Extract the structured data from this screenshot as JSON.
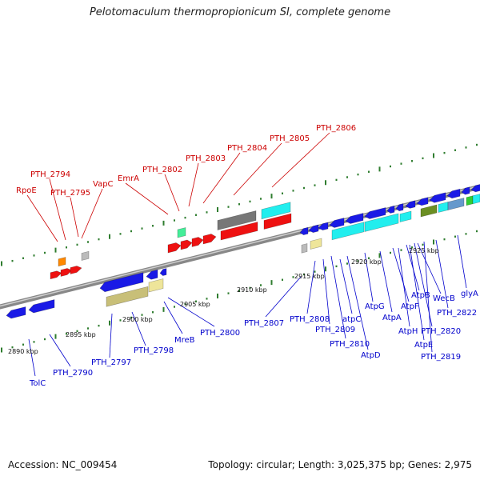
{
  "title": "Pelotomaculum thermopropionicum SI, complete genome",
  "footer": {
    "accession": "Accession: NC_009454",
    "summary": "Topology: circular; Length: 3,025,375 bp; Genes: 2,975"
  },
  "colors": {
    "background": "#ffffff",
    "axis": "#8a8a8a",
    "tick": "#2f7d2f",
    "upper_label": "#cc0000",
    "lower_label": "#0000cc",
    "red": "#ee1111",
    "blue": "#1a1ae6",
    "cyan": "#22eeee",
    "orange": "#ff8800",
    "gray": "#777777",
    "lightgray": "#bbbbbb",
    "khaki": "#c8bf78",
    "paleyellow": "#eee59a",
    "mint": "#44ee99",
    "olive": "#6b8e23",
    "steelblue": "#6699cc",
    "green": "#33cc33"
  },
  "scale_labels": [
    "2890 kbp",
    "2895 kbp",
    "2900 kbp",
    "2905 kbp",
    "2910 kbp",
    "2915 kbp",
    "2920 kbp",
    "2925 kbp"
  ],
  "upper_labels": [
    "RpoE",
    "PTH_2794",
    "PTH_2795",
    "VapC",
    "EmrA",
    "PTH_2802",
    "PTH_2803",
    "PTH_2804",
    "PTH_2805",
    "PTH_2806"
  ],
  "lower_labels": [
    "TolC",
    "PTH_2790",
    "PTH_2797",
    "PTH_2798",
    "MreB",
    "PTH_2800",
    "PTH_2807",
    "PTH_2808",
    "PTH_2809",
    "PTH_2810",
    "atpC",
    "AtpD",
    "AtpG",
    "AtpA",
    "AtpF",
    "AtpH",
    "AtpB",
    "AtpE",
    "PTH_2820",
    "WecB",
    "PTH_2819",
    "PTH_2822",
    "glyA"
  ]
}
